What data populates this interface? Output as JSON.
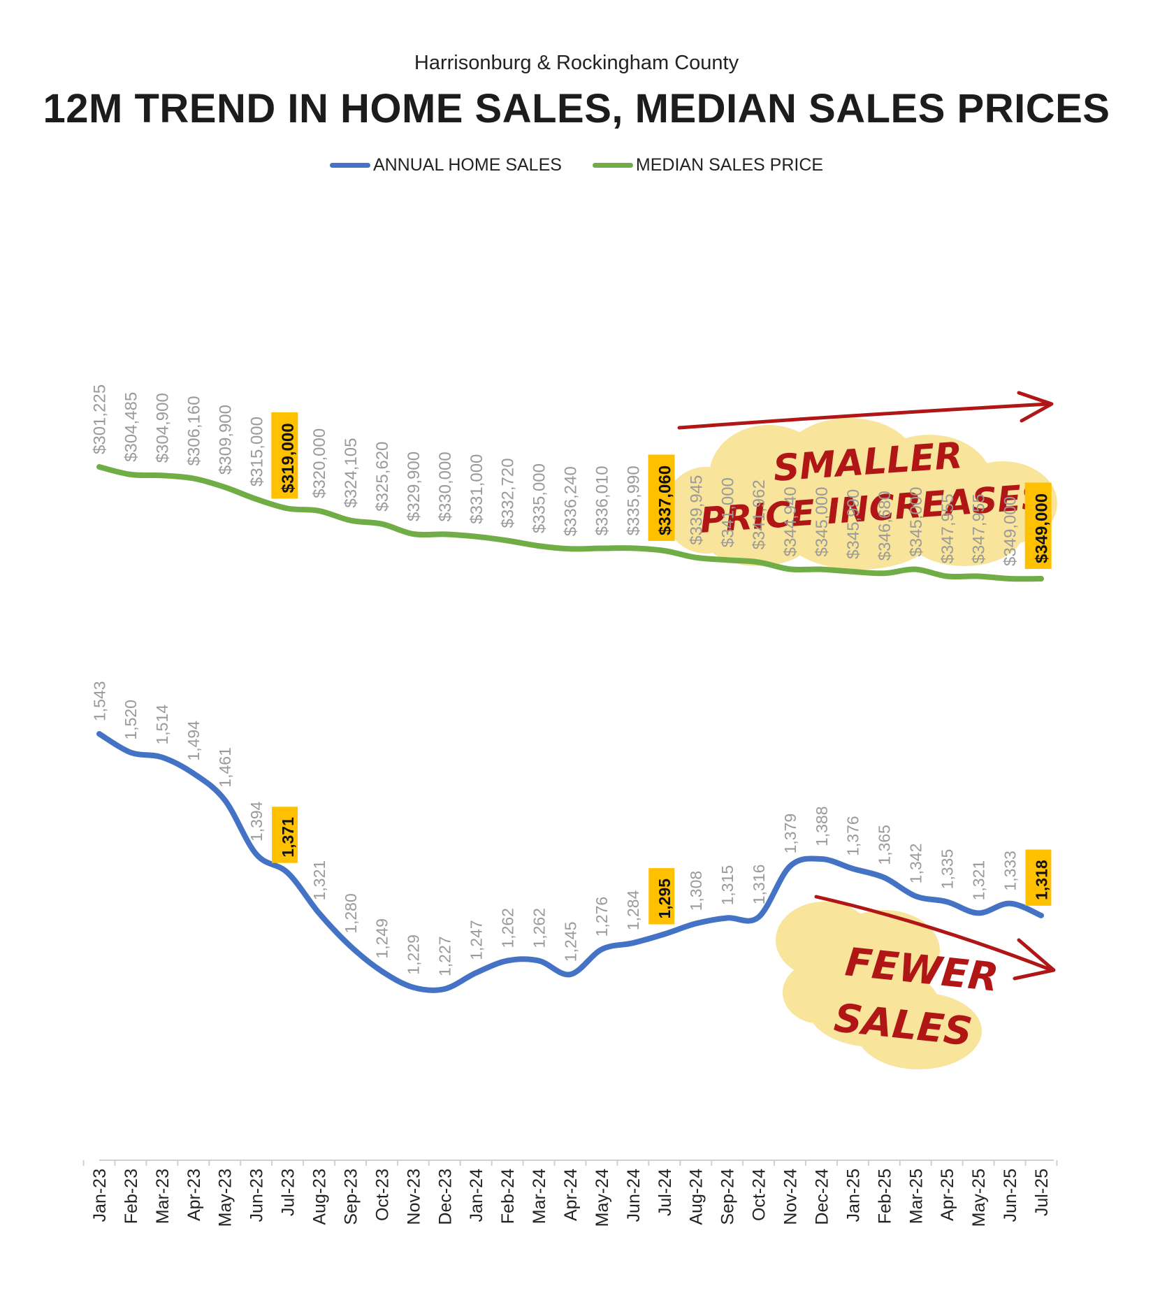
{
  "subtitle": "Harrisonburg & Rockingham County",
  "title": "12M TREND IN HOME SALES, MEDIAN SALES PRICES",
  "colors": {
    "sales_line": "#4472C4",
    "price_line": "#70AD47",
    "highlight": "#FFC000",
    "label_gray": "#9a9a9a",
    "annotation_red": "#B01616",
    "annotation_cloud": "#F8E49A"
  },
  "annotations": {
    "price_note_line1": "SMALLER",
    "price_note_line2": "PRICE INCREASES",
    "sales_note_line1": "FEWER",
    "sales_note_line2": "SALES"
  },
  "chart_data": {
    "type": "line",
    "x": [
      "Jan-23",
      "Feb-23",
      "Mar-23",
      "Apr-23",
      "May-23",
      "Jun-23",
      "Jul-23",
      "Aug-23",
      "Sep-23",
      "Oct-23",
      "Nov-23",
      "Dec-23",
      "Jan-24",
      "Feb-24",
      "Mar-24",
      "Apr-24",
      "May-24",
      "Jun-24",
      "Jul-24",
      "Aug-24",
      "Sep-24",
      "Oct-24",
      "Nov-24",
      "Dec-24",
      "Jan-25",
      "Feb-25",
      "Mar-25",
      "Apr-25",
      "May-25",
      "Jun-25",
      "Jul-25"
    ],
    "series": [
      {
        "name": "ANNUAL HOME SALES",
        "values": [
          1543,
          1520,
          1514,
          1494,
          1461,
          1394,
          1371,
          1321,
          1280,
          1249,
          1229,
          1227,
          1247,
          1262,
          1262,
          1245,
          1276,
          1284,
          1295,
          1308,
          1315,
          1316,
          1379,
          1388,
          1376,
          1365,
          1342,
          1335,
          1321,
          1333,
          1318
        ],
        "labels": [
          "1,543",
          "1,520",
          "1,514",
          "1,494",
          "1,461",
          "1,394",
          "1,371",
          "1,321",
          "1,280",
          "1,249",
          "1,229",
          "1,227",
          "1,247",
          "1,262",
          "1,262",
          "1,245",
          "1,276",
          "1,284",
          "1,295",
          "1,308",
          "1,315",
          "1,316",
          "1,379",
          "1,388",
          "1,376",
          "1,365",
          "1,342",
          "1,335",
          "1,321",
          "1,333",
          "1,318"
        ],
        "highlighted": [
          6,
          18,
          30
        ]
      },
      {
        "name": "MEDIAN SALES PRICE",
        "values": [
          301225,
          304485,
          304900,
          306160,
          309900,
          315000,
          319000,
          320000,
          324105,
          325620,
          329900,
          330000,
          331000,
          332720,
          335000,
          336240,
          336010,
          335990,
          337060,
          339945,
          341000,
          341962,
          344940,
          345000,
          345990,
          346680,
          345000,
          347955,
          347955,
          349000,
          349000
        ],
        "labels": [
          "$301,225",
          "$304,485",
          "$304,900",
          "$306,160",
          "$309,900",
          "$315,000",
          "$319,000",
          "$320,000",
          "$324,105",
          "$325,620",
          "$329,900",
          "$330,000",
          "$331,000",
          "$332,720",
          "$335,000",
          "$336,240",
          "$336,010",
          "$335,990",
          "$337,060",
          "$339,945",
          "$341,000",
          "$341,962",
          "$344,940",
          "$345,000",
          "$345,990",
          "$346,680",
          "$345,000",
          "$347,955",
          "$347,955",
          "$349,000",
          "$349,000"
        ],
        "highlighted": [
          6,
          18,
          30
        ]
      }
    ],
    "legend": "top-center",
    "grid": false
  }
}
